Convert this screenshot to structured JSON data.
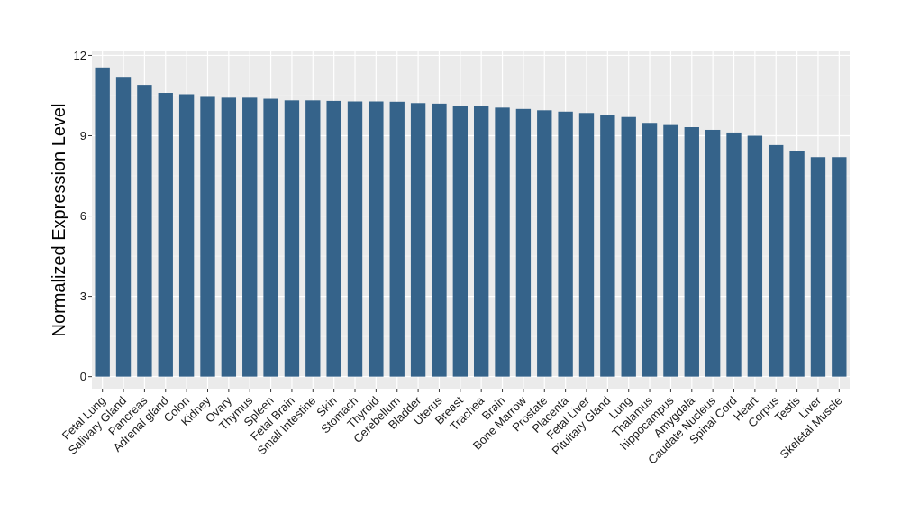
{
  "chart_data": {
    "type": "bar",
    "ylabel": "Normalized Expression Level",
    "xlabel": "",
    "ylim": [
      -0.45,
      12.15
    ],
    "yticks": [
      0,
      3,
      6,
      9,
      12
    ],
    "grid": true,
    "legend": "none",
    "colors": {
      "bar": "#35638a",
      "panel": "#ebebeb",
      "grid_major": "#ffffff",
      "grid_minor": "#f5f5f5"
    },
    "categories": [
      "Fetal Lung",
      "Salivary Gland",
      "Pancreas",
      "Adrenal gland",
      "Colon",
      "Kidney",
      "Ovary",
      "Thymus",
      "Spleen",
      "Fetal Brain",
      "Small Intestine",
      "Skin",
      "Stomach",
      "Thyroid",
      "Cerebellum",
      "Bladder",
      "Uterus",
      "Breast",
      "Trachea",
      "Brain",
      "Bone Marrow",
      "Prostate",
      "Placenta",
      "Fetal Liver",
      "Pituitary Gland",
      "Lung",
      "Thalamus",
      "hippocampus",
      "Amygdala",
      "Caudate Nucleus",
      "Spinal Cord",
      "Heart",
      "Corpus",
      "Testis",
      "Liver",
      "Skeletal Muscle"
    ],
    "values": [
      11.55,
      11.2,
      10.9,
      10.6,
      10.55,
      10.45,
      10.42,
      10.42,
      10.38,
      10.32,
      10.32,
      10.3,
      10.28,
      10.28,
      10.27,
      10.22,
      10.2,
      10.12,
      10.12,
      10.05,
      10.0,
      9.95,
      9.9,
      9.85,
      9.78,
      9.7,
      9.48,
      9.4,
      9.32,
      9.22,
      9.12,
      9.0,
      8.65,
      8.42,
      8.2,
      8.2
    ]
  }
}
